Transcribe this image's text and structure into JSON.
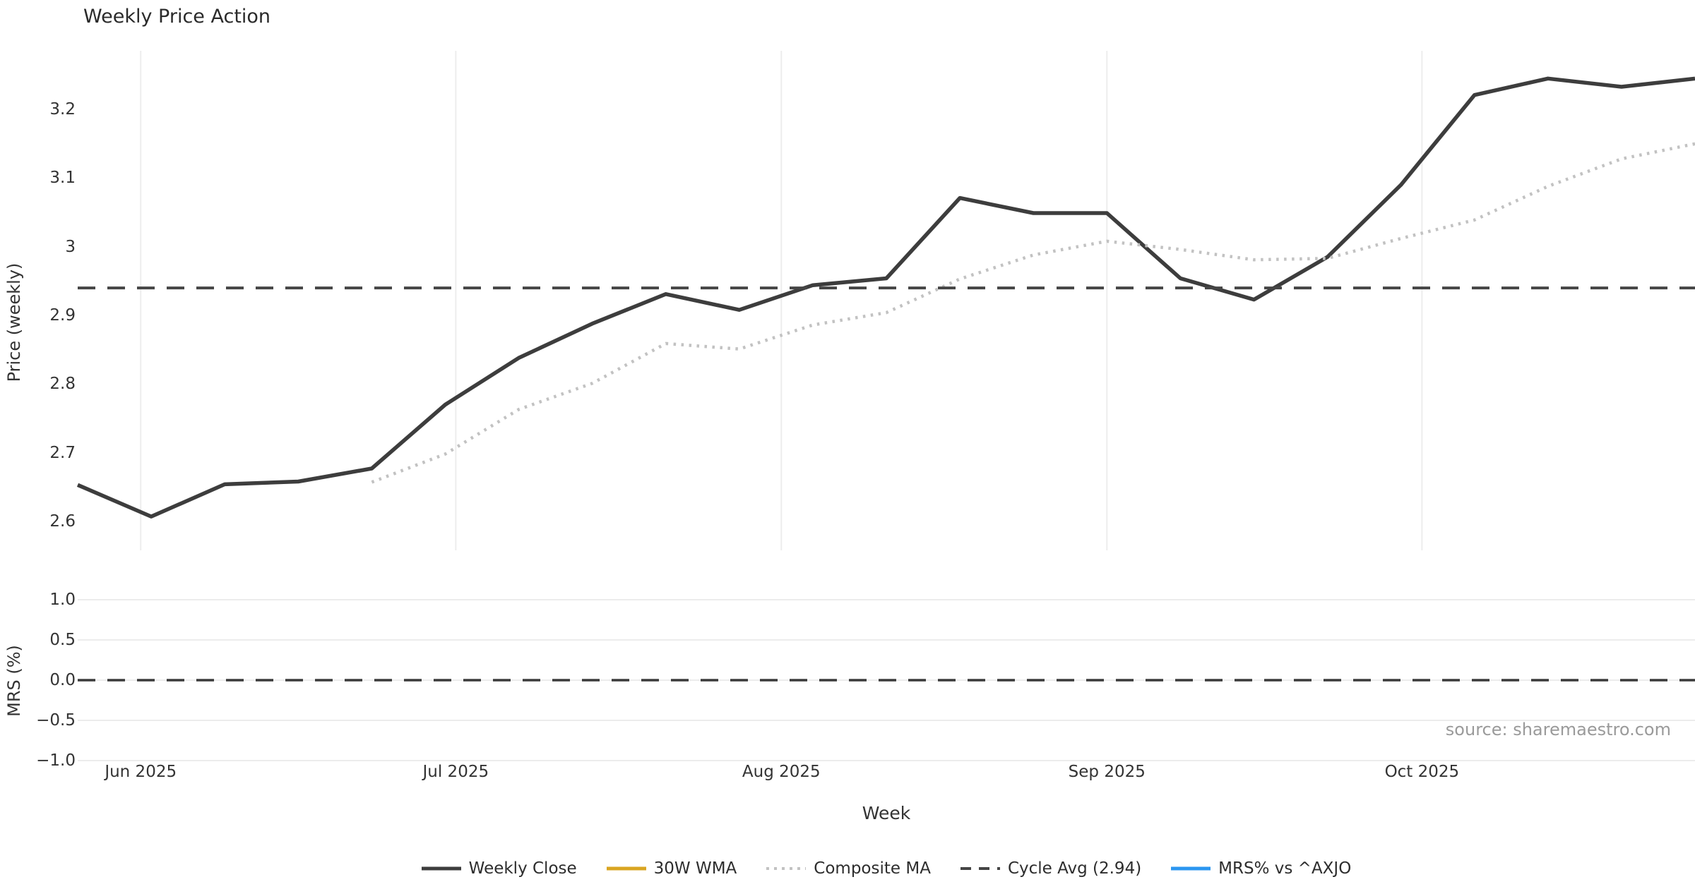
{
  "title": "Weekly Price Action",
  "source_note": "source: sharemaestro.com",
  "chart_data": {
    "type": "line",
    "title": "Weekly Price Action",
    "xlabel": "Week",
    "x_ticks": [
      {
        "label": "Jun 2025",
        "day_offset": 6
      },
      {
        "label": "Jul 2025",
        "day_offset": 36
      },
      {
        "label": "Aug 2025",
        "day_offset": 67
      },
      {
        "label": "Sep 2025",
        "day_offset": 98
      },
      {
        "label": "Oct 2025",
        "day_offset": 128
      }
    ],
    "x_weeks": [
      "2025-05-26",
      "2025-06-02",
      "2025-06-09",
      "2025-06-16",
      "2025-06-23",
      "2025-06-30",
      "2025-07-07",
      "2025-07-14",
      "2025-07-21",
      "2025-07-28",
      "2025-08-04",
      "2025-08-11",
      "2025-08-18",
      "2025-08-25",
      "2025-09-01",
      "2025-09-08",
      "2025-09-15",
      "2025-09-22",
      "2025-09-29",
      "2025-10-06",
      "2025-10-13",
      "2025-10-20",
      "2025-10-27"
    ],
    "panels": [
      {
        "ylabel": "Price (weekly)",
        "ylim": [
          2.545,
          3.285
        ],
        "grid": "vertical-months",
        "ticks": [
          {
            "label": "3.2",
            "value": 3.2
          },
          {
            "label": "3.1",
            "value": 3.1
          },
          {
            "label": "3",
            "value": 3.0
          },
          {
            "label": "2.9",
            "value": 2.9
          },
          {
            "label": "2.8",
            "value": 2.8
          },
          {
            "label": "2.7",
            "value": 2.7
          },
          {
            "label": "2.6",
            "value": 2.6
          }
        ]
      },
      {
        "ylabel": "MRS (%)",
        "ylim": [
          -1.15,
          1.15
        ],
        "grid": "horizontal",
        "ticks": [
          {
            "label": "1.0",
            "value": 1.0
          },
          {
            "label": "0.5",
            "value": 0.5
          },
          {
            "label": "0.0",
            "value": 0.0
          },
          {
            "label": "−0.5",
            "value": -0.5
          },
          {
            "label": "−1.0",
            "value": -1.0
          }
        ],
        "zero_line": {
          "value": 0.0,
          "style": "dashed",
          "color": "#3a3a3a"
        }
      }
    ],
    "series": [
      {
        "key": "weekly_close",
        "label": "Weekly Close",
        "color": "#3d3d3d",
        "style": "solid",
        "width": 5.5,
        "panel": 0,
        "values": [
          2.653,
          2.607,
          2.654,
          2.658,
          2.677,
          2.77,
          2.838,
          2.888,
          2.931,
          2.908,
          2.944,
          2.954,
          3.071,
          3.049,
          3.049,
          2.954,
          2.923,
          2.985,
          3.09,
          3.221,
          3.245,
          3.233,
          3.245
        ]
      },
      {
        "key": "wma_30w",
        "label": "30W WMA",
        "color": "#d9a521",
        "style": "solid",
        "width": 5.5,
        "panel": 0,
        "values": []
      },
      {
        "key": "composite_ma",
        "label": "Composite MA",
        "color": "#c2c2c2",
        "style": "dotted",
        "width": 4.5,
        "panel": 0,
        "values": [
          null,
          null,
          null,
          null,
          2.657,
          2.698,
          2.763,
          2.801,
          2.859,
          2.851,
          2.886,
          2.904,
          2.953,
          2.988,
          3.008,
          2.996,
          2.981,
          2.983,
          3.012,
          3.039,
          3.088,
          3.128,
          3.15
        ]
      },
      {
        "key": "cycle_avg",
        "label": "Cycle Avg (2.94)",
        "color": "#454545",
        "style": "dashed",
        "width": 4,
        "panel": 0,
        "hline": 2.94
      },
      {
        "key": "mrs_vs_axjo",
        "label": "MRS% vs ^AXJO",
        "color": "#2b96f0",
        "style": "solid",
        "width": 5.5,
        "panel": 1,
        "values": []
      }
    ],
    "legend_position": "bottom-center",
    "grid_color": "#ededed"
  }
}
